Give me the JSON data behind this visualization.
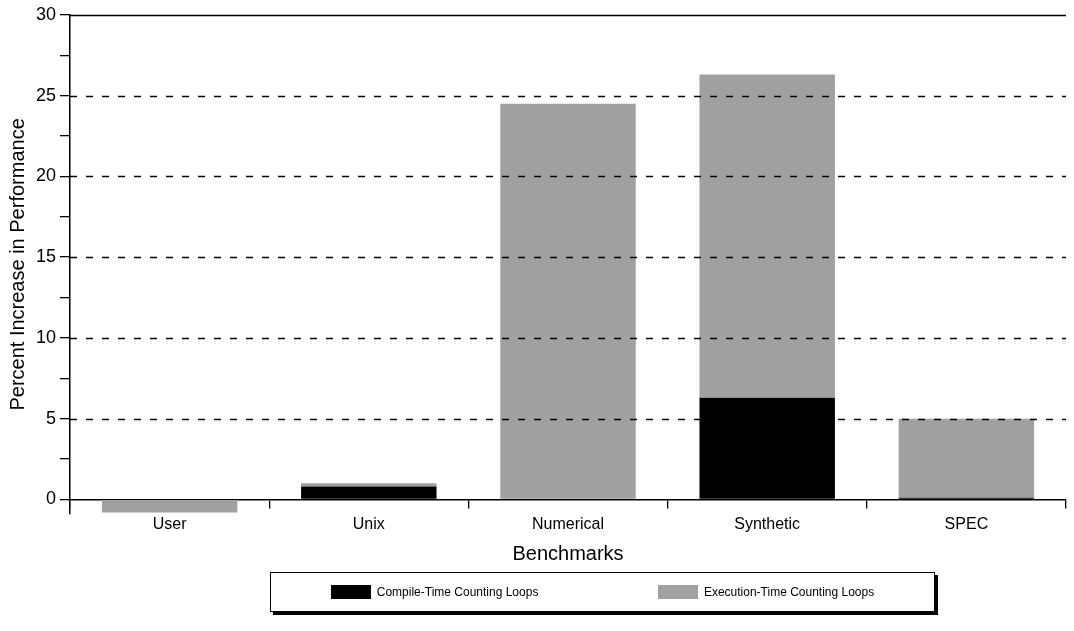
{
  "chart_data": {
    "type": "bar",
    "stacked": true,
    "xlabel": "Benchmarks",
    "ylabel": "Percent Increase in Performance",
    "categories": [
      "User",
      "Unix",
      "Numerical",
      "Synthetic",
      "SPEC"
    ],
    "series": [
      {
        "name": "Compile-Time Counting Loops",
        "color": "#000000",
        "values": [
          0,
          0.8,
          0,
          6.3,
          0.1
        ]
      },
      {
        "name": "Execution-Time Counting Loops",
        "color": "#a0a0a0",
        "values": [
          -0.8,
          0.2,
          24.5,
          20.0,
          4.9
        ]
      }
    ],
    "ylim": [
      -0.9,
      30
    ],
    "yticks": [
      0,
      {
        "value": 2.5,
        "label": null
      },
      5,
      {
        "value": 7.5,
        "label": null
      },
      10,
      {
        "value": 12.5,
        "label": null
      },
      15,
      {
        "value": 17.5,
        "label": null
      },
      20,
      {
        "value": 22.5,
        "label": null
      },
      25,
      {
        "value": 27.5,
        "label": null
      },
      30
    ],
    "grid": "y",
    "legend": "bottom"
  }
}
